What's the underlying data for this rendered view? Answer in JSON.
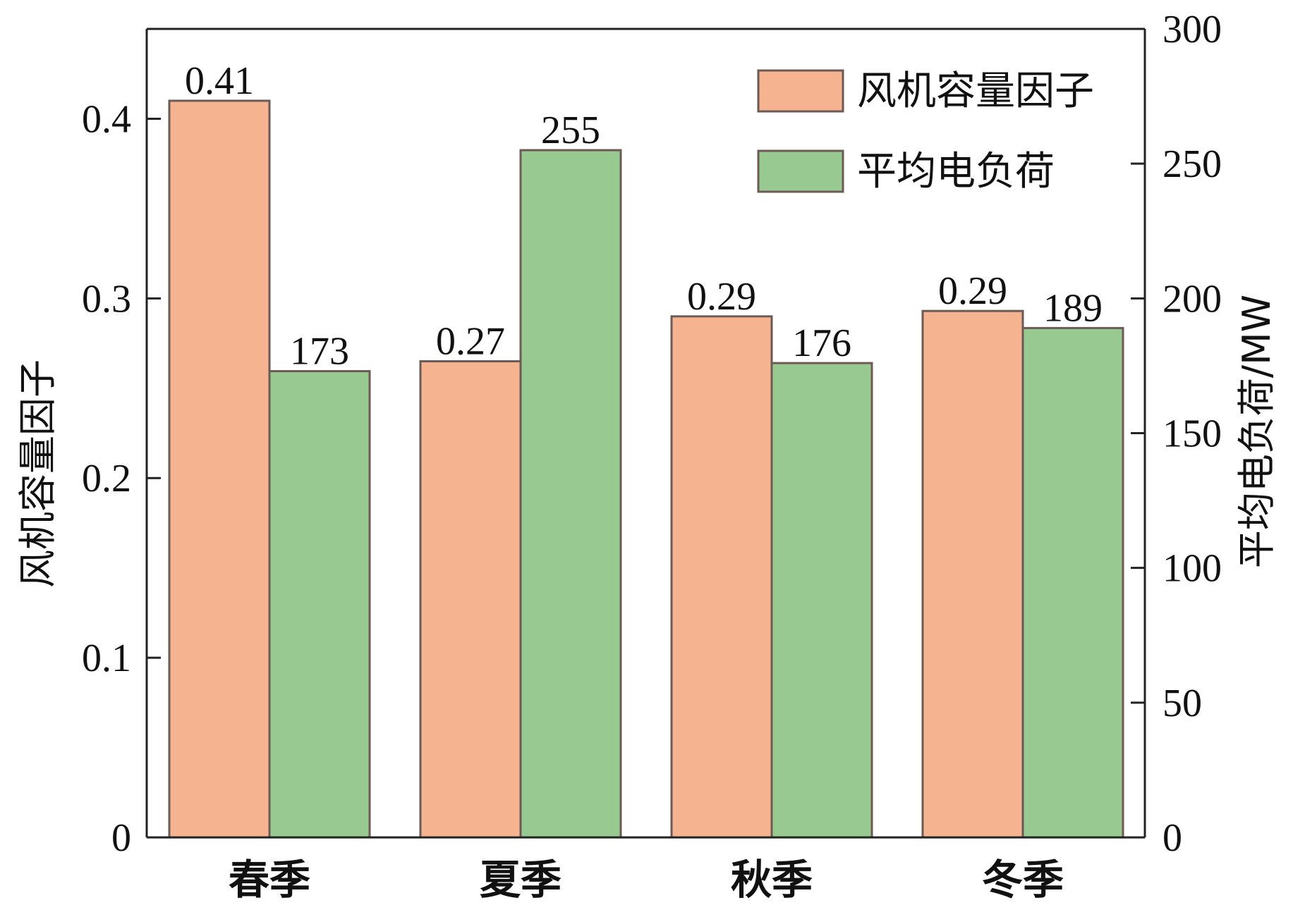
{
  "chart_data": {
    "type": "bar",
    "categories": [
      "春季",
      "夏季",
      "秋季",
      "冬季"
    ],
    "series": [
      {
        "name": "风机容量因子",
        "axis": "left",
        "color": "#f5b48f",
        "values": [
          0.41,
          0.265,
          0.29,
          0.293
        ],
        "labels": [
          "0.41",
          "0.27",
          "0.29",
          "0.29"
        ]
      },
      {
        "name": "平均电负荷",
        "axis": "right",
        "color": "#98c991",
        "values": [
          173,
          255,
          176,
          189
        ],
        "labels": [
          "173",
          "255",
          "176",
          "189"
        ]
      }
    ],
    "ylabel_left": "风机容量因子",
    "ylabel_right": "平均电负荷/MW",
    "ylim_left": [
      0,
      0.45
    ],
    "ylim_right": [
      0,
      300
    ],
    "yticks_left": [
      "0",
      "0.1",
      "0.2",
      "0.3",
      "0.4"
    ],
    "yticks_left_values": [
      0,
      0.1,
      0.2,
      0.3,
      0.4
    ],
    "yticks_right": [
      "0",
      "50",
      "100",
      "150",
      "200",
      "250",
      "300"
    ],
    "yticks_right_values": [
      0,
      50,
      100,
      150,
      200,
      250,
      300
    ],
    "legend_position": "top-right",
    "grid": false,
    "bar_edge_color": "#6b5a55",
    "axis_color": "#222222"
  }
}
